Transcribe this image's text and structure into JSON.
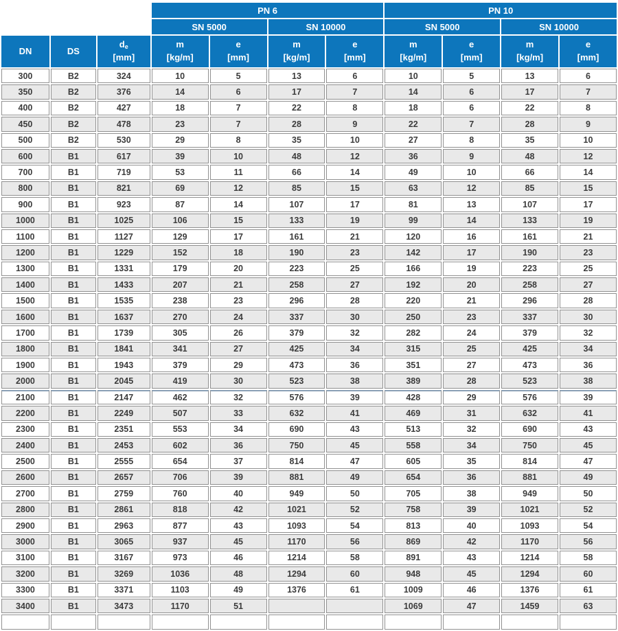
{
  "colors": {
    "header_bg": "#0d76bc",
    "header_text": "#ffffff",
    "row_bg": "#ffffff",
    "row_alt_bg": "#e9e9e9",
    "border": "#909090",
    "data_text": "#3c3c3c"
  },
  "header": {
    "pn_groups": [
      {
        "label": "PN 6"
      },
      {
        "label": "PN 10"
      }
    ],
    "sn_groups": [
      {
        "label": "SN 5000"
      },
      {
        "label": "SN 10000"
      },
      {
        "label": "SN 5000"
      },
      {
        "label": "SN 10000"
      }
    ],
    "left_columns": {
      "dn": "DN",
      "ds": "DS",
      "de_main": "d",
      "de_sub": "e",
      "de_unit": "[mm]"
    },
    "measure_columns": {
      "m_label": "m",
      "m_unit": "[kg/m]",
      "e_label": "e",
      "e_unit": "[mm]"
    }
  },
  "table": {
    "section_break_index": 20,
    "columns_count": 11,
    "rows": [
      [
        "300",
        "B2",
        "324",
        "10",
        "5",
        "13",
        "6",
        "10",
        "5",
        "13",
        "6"
      ],
      [
        "350",
        "B2",
        "376",
        "14",
        "6",
        "17",
        "7",
        "14",
        "6",
        "17",
        "7"
      ],
      [
        "400",
        "B2",
        "427",
        "18",
        "7",
        "22",
        "8",
        "18",
        "6",
        "22",
        "8"
      ],
      [
        "450",
        "B2",
        "478",
        "23",
        "7",
        "28",
        "9",
        "22",
        "7",
        "28",
        "9"
      ],
      [
        "500",
        "B2",
        "530",
        "29",
        "8",
        "35",
        "10",
        "27",
        "8",
        "35",
        "10"
      ],
      [
        "600",
        "B1",
        "617",
        "39",
        "10",
        "48",
        "12",
        "36",
        "9",
        "48",
        "12"
      ],
      [
        "700",
        "B1",
        "719",
        "53",
        "11",
        "66",
        "14",
        "49",
        "10",
        "66",
        "14"
      ],
      [
        "800",
        "B1",
        "821",
        "69",
        "12",
        "85",
        "15",
        "63",
        "12",
        "85",
        "15"
      ],
      [
        "900",
        "B1",
        "923",
        "87",
        "14",
        "107",
        "17",
        "81",
        "13",
        "107",
        "17"
      ],
      [
        "1000",
        "B1",
        "1025",
        "106",
        "15",
        "133",
        "19",
        "99",
        "14",
        "133",
        "19"
      ],
      [
        "1100",
        "B1",
        "1127",
        "129",
        "17",
        "161",
        "21",
        "120",
        "16",
        "161",
        "21"
      ],
      [
        "1200",
        "B1",
        "1229",
        "152",
        "18",
        "190",
        "23",
        "142",
        "17",
        "190",
        "23"
      ],
      [
        "1300",
        "B1",
        "1331",
        "179",
        "20",
        "223",
        "25",
        "166",
        "19",
        "223",
        "25"
      ],
      [
        "1400",
        "B1",
        "1433",
        "207",
        "21",
        "258",
        "27",
        "192",
        "20",
        "258",
        "27"
      ],
      [
        "1500",
        "B1",
        "1535",
        "238",
        "23",
        "296",
        "28",
        "220",
        "21",
        "296",
        "28"
      ],
      [
        "1600",
        "B1",
        "1637",
        "270",
        "24",
        "337",
        "30",
        "250",
        "23",
        "337",
        "30"
      ],
      [
        "1700",
        "B1",
        "1739",
        "305",
        "26",
        "379",
        "32",
        "282",
        "24",
        "379",
        "32"
      ],
      [
        "1800",
        "B1",
        "1841",
        "341",
        "27",
        "425",
        "34",
        "315",
        "25",
        "425",
        "34"
      ],
      [
        "1900",
        "B1",
        "1943",
        "379",
        "29",
        "473",
        "36",
        "351",
        "27",
        "473",
        "36"
      ],
      [
        "2000",
        "B1",
        "2045",
        "419",
        "30",
        "523",
        "38",
        "389",
        "28",
        "523",
        "38"
      ],
      [
        "2100",
        "B1",
        "2147",
        "462",
        "32",
        "576",
        "39",
        "428",
        "29",
        "576",
        "39"
      ],
      [
        "2200",
        "B1",
        "2249",
        "507",
        "33",
        "632",
        "41",
        "469",
        "31",
        "632",
        "41"
      ],
      [
        "2300",
        "B1",
        "2351",
        "553",
        "34",
        "690",
        "43",
        "513",
        "32",
        "690",
        "43"
      ],
      [
        "2400",
        "B1",
        "2453",
        "602",
        "36",
        "750",
        "45",
        "558",
        "34",
        "750",
        "45"
      ],
      [
        "2500",
        "B1",
        "2555",
        "654",
        "37",
        "814",
        "47",
        "605",
        "35",
        "814",
        "47"
      ],
      [
        "2600",
        "B1",
        "2657",
        "706",
        "39",
        "881",
        "49",
        "654",
        "36",
        "881",
        "49"
      ],
      [
        "2700",
        "B1",
        "2759",
        "760",
        "40",
        "949",
        "50",
        "705",
        "38",
        "949",
        "50"
      ],
      [
        "2800",
        "B1",
        "2861",
        "818",
        "42",
        "1021",
        "52",
        "758",
        "39",
        "1021",
        "52"
      ],
      [
        "2900",
        "B1",
        "2963",
        "877",
        "43",
        "1093",
        "54",
        "813",
        "40",
        "1093",
        "54"
      ],
      [
        "3000",
        "B1",
        "3065",
        "937",
        "45",
        "1170",
        "56",
        "869",
        "42",
        "1170",
        "56"
      ],
      [
        "3100",
        "B1",
        "3167",
        "973",
        "46",
        "1214",
        "58",
        "891",
        "43",
        "1214",
        "58"
      ],
      [
        "3200",
        "B1",
        "3269",
        "1036",
        "48",
        "1294",
        "60",
        "948",
        "45",
        "1294",
        "60"
      ],
      [
        "3300",
        "B1",
        "3371",
        "1103",
        "49",
        "1376",
        "61",
        "1009",
        "46",
        "1376",
        "61"
      ],
      [
        "3400",
        "B1",
        "3473",
        "1170",
        "51",
        "",
        "",
        "1069",
        "47",
        "1459",
        "63"
      ]
    ]
  }
}
